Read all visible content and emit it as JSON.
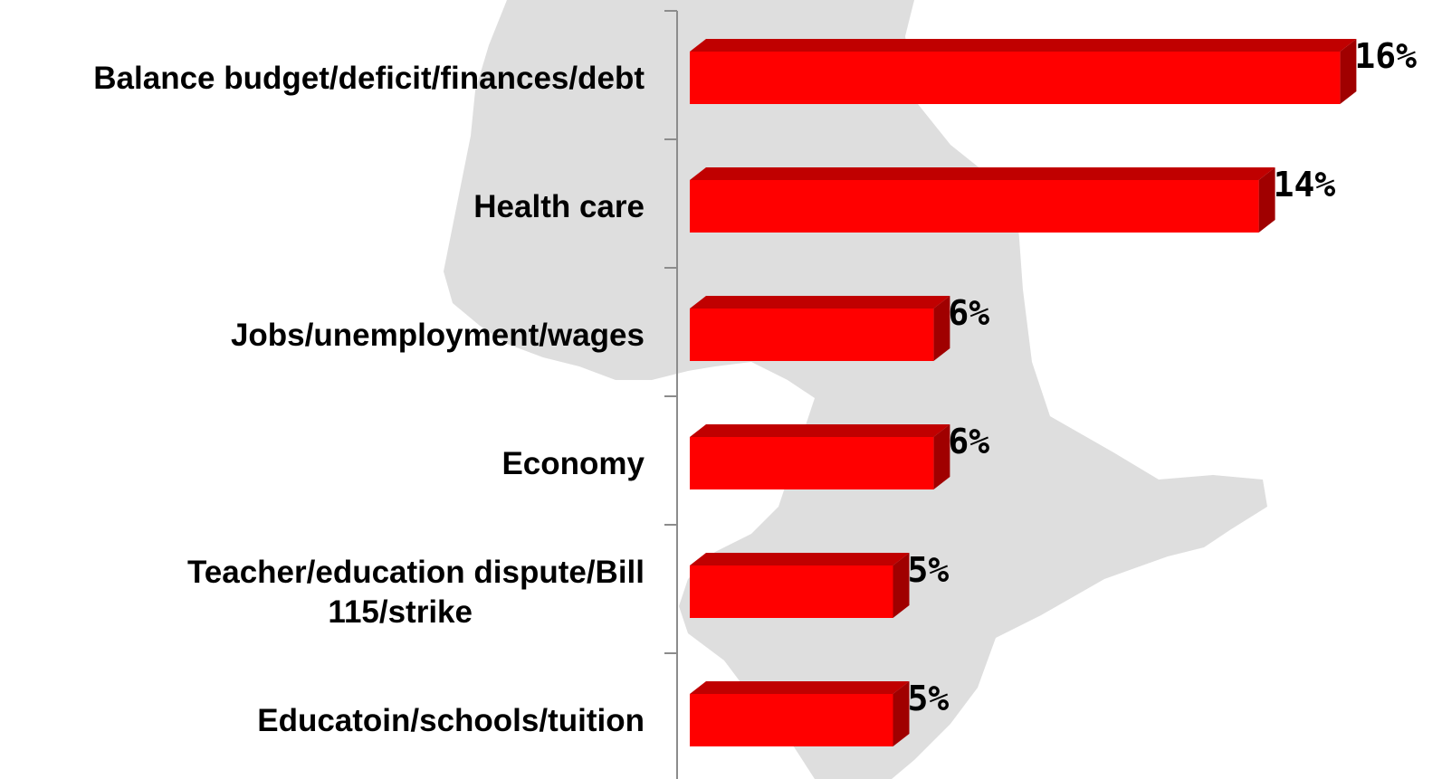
{
  "chart_data": {
    "type": "bar",
    "orientation": "horizontal",
    "title": "",
    "xlabel": "",
    "ylabel": "",
    "categories": [
      "Balance budget/deficit/finances/debt",
      "Health care",
      "Jobs/unemployment/wages",
      "Economy",
      "Teacher/education dispute/Bill 115/strike",
      "Educatoin/schools/tuition"
    ],
    "category_lines": [
      [
        "Balance budget/deficit/finances/debt"
      ],
      [
        "Health care"
      ],
      [
        "Jobs/unemployment/wages"
      ],
      [
        "Economy"
      ],
      [
        "Teacher/education dispute/Bill",
        "115/strike"
      ],
      [
        "Educatoin/schools/tuition"
      ]
    ],
    "values": [
      16,
      14,
      6,
      6,
      5,
      5
    ],
    "value_labels": [
      "16%",
      "14%",
      "6%",
      "6%",
      "5%",
      "5%"
    ],
    "unit": "%",
    "xlim": [
      0,
      16
    ],
    "grid": false,
    "legend": "none",
    "style": "3d",
    "colors": {
      "bar_front": "#ff0000",
      "bar_top": "#c00000",
      "bar_side": "#a00000",
      "axis": "#8c8c8c",
      "background_map": "#dedede"
    }
  }
}
